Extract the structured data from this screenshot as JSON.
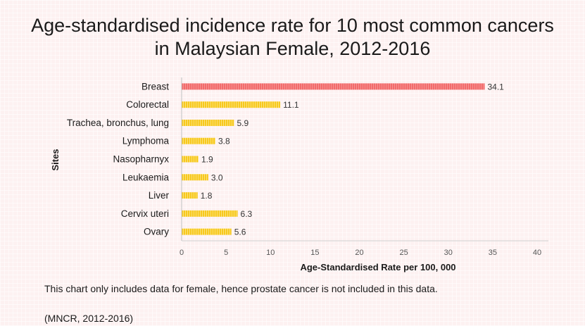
{
  "title_line1": "Age-standardised incidence rate for 10 most common cancers",
  "title_line2": "in Malaysian Female, 2012-2016",
  "note": "This chart only includes data for female, hence prostate cancer is not included in this data.",
  "source": "(MNCR, 2012-2016)",
  "chart_data": {
    "type": "bar",
    "orientation": "horizontal",
    "title": "Age-standardised incidence rate for 10 most common cancers in Malaysian Female, 2012-2016",
    "xlabel": "Age-Standardised Rate per 100, 000",
    "ylabel": "Sites",
    "categories": [
      "Breast",
      "Colorectal",
      "Trachea, bronchus, lung",
      "Lymphoma",
      "Nasopharnyx",
      "Leukaemia",
      "Liver",
      "Cervix uteri",
      "Ovary"
    ],
    "values": [
      34.1,
      11.1,
      5.9,
      3.8,
      1.9,
      3.0,
      1.8,
      6.3,
      5.6
    ],
    "value_labels": [
      "34.1",
      "11.1",
      "5.9",
      "3.8",
      "1.9",
      "3.0",
      "1.8",
      "6.3",
      "5.6"
    ],
    "xlim": [
      0,
      40
    ],
    "xticks": [
      0,
      5,
      10,
      15,
      20,
      25,
      30,
      35,
      40
    ],
    "grid": false,
    "highlight_color": "#f26b6b",
    "bar_color": "#f5c518"
  }
}
